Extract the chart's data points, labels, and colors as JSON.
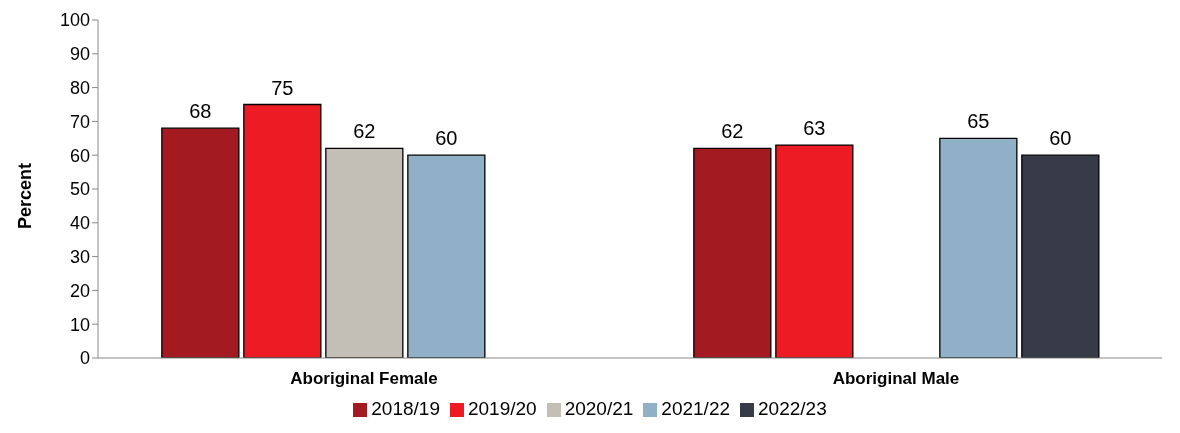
{
  "chart_data": {
    "type": "bar",
    "ylabel": "Percent",
    "categories": [
      "Aboriginal Female",
      "Aboriginal Male"
    ],
    "series": [
      {
        "name": "2018/19",
        "color": "#a31a20",
        "values": [
          68,
          62
        ]
      },
      {
        "name": "2019/20",
        "color": "#ed1c24",
        "values": [
          75,
          63
        ]
      },
      {
        "name": "2020/21",
        "color": "#c3bfb7",
        "values": [
          62,
          null
        ]
      },
      {
        "name": "2021/22",
        "color": "#8fb0c7",
        "values": [
          60,
          65
        ]
      },
      {
        "name": "2022/23",
        "color": "#363b47",
        "values": [
          null,
          60
        ]
      }
    ],
    "ylim": [
      0,
      100
    ],
    "yticks": [
      0,
      10,
      20,
      30,
      40,
      50,
      60,
      70,
      80,
      90,
      100
    ],
    "grid": false,
    "legend": "bottom",
    "data_labels": true
  }
}
